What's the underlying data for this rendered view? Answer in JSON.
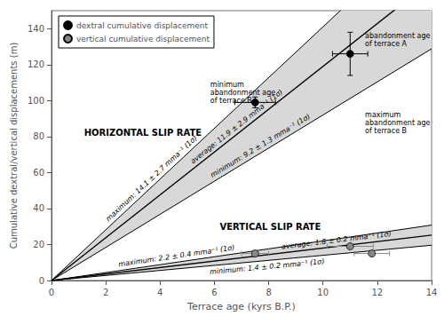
{
  "chart_data": {
    "type": "scatter",
    "xlabel": "Terrace age (kyrs B.P.)",
    "ylabel": "Cumulative dextral/vertical displacements (m)",
    "xlim": [
      0,
      14
    ],
    "ylim": [
      0,
      150
    ],
    "xticks": [
      0,
      2,
      4,
      6,
      8,
      10,
      12,
      14
    ],
    "yticks": [
      0,
      20,
      40,
      60,
      80,
      100,
      120,
      140
    ],
    "grid": false,
    "legend": "upper left",
    "bands": [
      {
        "lower_rate": 9.2,
        "upper_rate": 14.1,
        "color": "#d8d8d8"
      },
      {
        "lower_rate": 1.4,
        "upper_rate": 2.2,
        "color": "#d8d8d8"
      }
    ],
    "lines": [
      {
        "rate": 14.1,
        "label": "maximum: 14.1 ± 2.7 mma⁻¹ (1σ)",
        "color": "#000000"
      },
      {
        "rate": 11.9,
        "label": "average: 11.9 ± 2.9 mma⁻¹ (1σ)",
        "color": "#000000"
      },
      {
        "rate": 9.2,
        "label": "minimum: 9.2 ± 1.3 mma⁻¹ (1σ)",
        "color": "#000000"
      },
      {
        "rate": 2.2,
        "label": "maximum: 2.2 ± 0.4 mma⁻¹ (1σ)",
        "color": "#000000"
      },
      {
        "rate": 1.8,
        "label": "average: 1.8 ± 0.2 mma⁻¹ (1σ)",
        "color": "#000000"
      },
      {
        "rate": 1.4,
        "label": "minimum: 1.4 ± 0.2 mma⁻¹ (1σ)",
        "color": "#000000"
      }
    ],
    "series": [
      {
        "name": "dextral cumulative displacement",
        "color": "#000000",
        "marker": "circle",
        "x": [
          7.5,
          11.0
        ],
        "values": [
          99,
          126
        ],
        "xerr": [
          0.75,
          0.65
        ],
        "yerr": [
          3,
          12
        ]
      },
      {
        "name": "vertical cumulative displacement",
        "color": "#888888",
        "marker": "circle",
        "x": [
          7.5,
          11.0,
          11.8
        ],
        "values": [
          15,
          19,
          15
        ],
        "xerr": [
          0.5,
          0.85,
          0.65
        ],
        "yerr": [
          0.4,
          0.4,
          0.4
        ]
      }
    ],
    "rate_annotations": [
      {
        "text": "HORIZONTAL SLIP RATE",
        "x": 1.2,
        "y": 82
      },
      {
        "text": "VERTICAL SLIP RATE",
        "x": 6.2,
        "y": 30
      }
    ],
    "terrace_annotations": [
      {
        "text": "abandonment age\nof terrace A",
        "x": 11.55,
        "y": 138
      },
      {
        "text": "minimum\nabandonment age\nof terrace B",
        "x": 5.85,
        "y": 111
      },
      {
        "text": "maximum\nabandonment age\nof terrace B",
        "x": 11.55,
        "y": 94
      }
    ]
  }
}
